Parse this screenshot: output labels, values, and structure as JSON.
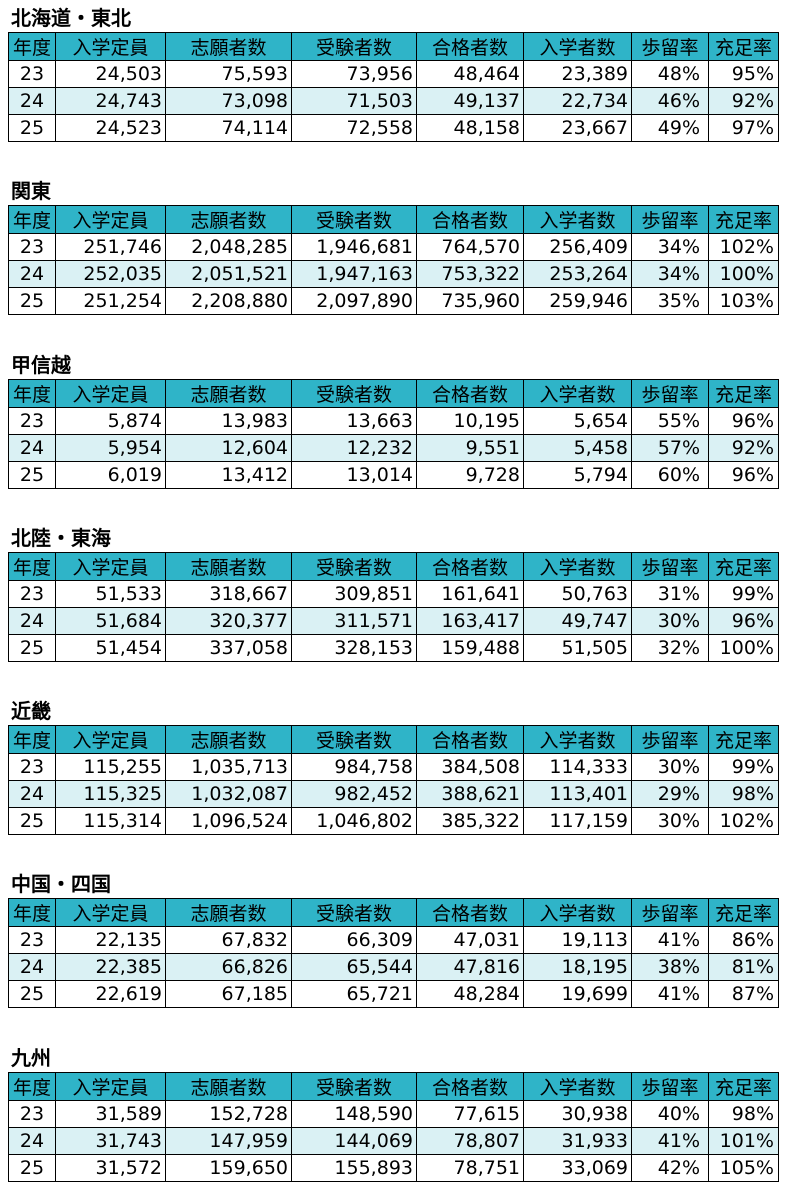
{
  "headers": {
    "year": "年度",
    "capacity": "入学定員",
    "applicants": "志願者数",
    "examinees": "受験者数",
    "passed": "合格者数",
    "enrolled": "入学者数",
    "yield_rate": "歩留率",
    "fill_rate": "充足率"
  },
  "colors": {
    "header_bg": "#2fb4c8",
    "band_bg": "#daf1f4",
    "border": "#000000"
  },
  "regions": [
    {
      "name": "北海道・東北",
      "rows": [
        {
          "year": "23",
          "capacity": "24,503",
          "applicants": "75,593",
          "examinees": "73,956",
          "passed": "48,464",
          "enrolled": "23,389",
          "yield_rate": "48%",
          "fill_rate": "95%"
        },
        {
          "year": "24",
          "capacity": "24,743",
          "applicants": "73,098",
          "examinees": "71,503",
          "passed": "49,137",
          "enrolled": "22,734",
          "yield_rate": "46%",
          "fill_rate": "92%"
        },
        {
          "year": "25",
          "capacity": "24,523",
          "applicants": "74,114",
          "examinees": "72,558",
          "passed": "48,158",
          "enrolled": "23,667",
          "yield_rate": "49%",
          "fill_rate": "97%"
        }
      ]
    },
    {
      "name": "関東",
      "rows": [
        {
          "year": "23",
          "capacity": "251,746",
          "applicants": "2,048,285",
          "examinees": "1,946,681",
          "passed": "764,570",
          "enrolled": "256,409",
          "yield_rate": "34%",
          "fill_rate": "102%"
        },
        {
          "year": "24",
          "capacity": "252,035",
          "applicants": "2,051,521",
          "examinees": "1,947,163",
          "passed": "753,322",
          "enrolled": "253,264",
          "yield_rate": "34%",
          "fill_rate": "100%"
        },
        {
          "year": "25",
          "capacity": "251,254",
          "applicants": "2,208,880",
          "examinees": "2,097,890",
          "passed": "735,960",
          "enrolled": "259,946",
          "yield_rate": "35%",
          "fill_rate": "103%"
        }
      ]
    },
    {
      "name": "甲信越",
      "rows": [
        {
          "year": "23",
          "capacity": "5,874",
          "applicants": "13,983",
          "examinees": "13,663",
          "passed": "10,195",
          "enrolled": "5,654",
          "yield_rate": "55%",
          "fill_rate": "96%"
        },
        {
          "year": "24",
          "capacity": "5,954",
          "applicants": "12,604",
          "examinees": "12,232",
          "passed": "9,551",
          "enrolled": "5,458",
          "yield_rate": "57%",
          "fill_rate": "92%"
        },
        {
          "year": "25",
          "capacity": "6,019",
          "applicants": "13,412",
          "examinees": "13,014",
          "passed": "9,728",
          "enrolled": "5,794",
          "yield_rate": "60%",
          "fill_rate": "96%"
        }
      ]
    },
    {
      "name": "北陸・東海",
      "rows": [
        {
          "year": "23",
          "capacity": "51,533",
          "applicants": "318,667",
          "examinees": "309,851",
          "passed": "161,641",
          "enrolled": "50,763",
          "yield_rate": "31%",
          "fill_rate": "99%"
        },
        {
          "year": "24",
          "capacity": "51,684",
          "applicants": "320,377",
          "examinees": "311,571",
          "passed": "163,417",
          "enrolled": "49,747",
          "yield_rate": "30%",
          "fill_rate": "96%"
        },
        {
          "year": "25",
          "capacity": "51,454",
          "applicants": "337,058",
          "examinees": "328,153",
          "passed": "159,488",
          "enrolled": "51,505",
          "yield_rate": "32%",
          "fill_rate": "100%"
        }
      ]
    },
    {
      "name": "近畿",
      "rows": [
        {
          "year": "23",
          "capacity": "115,255",
          "applicants": "1,035,713",
          "examinees": "984,758",
          "passed": "384,508",
          "enrolled": "114,333",
          "yield_rate": "30%",
          "fill_rate": "99%"
        },
        {
          "year": "24",
          "capacity": "115,325",
          "applicants": "1,032,087",
          "examinees": "982,452",
          "passed": "388,621",
          "enrolled": "113,401",
          "yield_rate": "29%",
          "fill_rate": "98%"
        },
        {
          "year": "25",
          "capacity": "115,314",
          "applicants": "1,096,524",
          "examinees": "1,046,802",
          "passed": "385,322",
          "enrolled": "117,159",
          "yield_rate": "30%",
          "fill_rate": "102%"
        }
      ]
    },
    {
      "name": "中国・四国",
      "rows": [
        {
          "year": "23",
          "capacity": "22,135",
          "applicants": "67,832",
          "examinees": "66,309",
          "passed": "47,031",
          "enrolled": "19,113",
          "yield_rate": "41%",
          "fill_rate": "86%"
        },
        {
          "year": "24",
          "capacity": "22,385",
          "applicants": "66,826",
          "examinees": "65,544",
          "passed": "47,816",
          "enrolled": "18,195",
          "yield_rate": "38%",
          "fill_rate": "81%"
        },
        {
          "year": "25",
          "capacity": "22,619",
          "applicants": "67,185",
          "examinees": "65,721",
          "passed": "48,284",
          "enrolled": "19,699",
          "yield_rate": "41%",
          "fill_rate": "87%"
        }
      ]
    },
    {
      "name": "九州",
      "rows": [
        {
          "year": "23",
          "capacity": "31,589",
          "applicants": "152,728",
          "examinees": "148,590",
          "passed": "77,615",
          "enrolled": "30,938",
          "yield_rate": "40%",
          "fill_rate": "98%"
        },
        {
          "year": "24",
          "capacity": "31,743",
          "applicants": "147,959",
          "examinees": "144,069",
          "passed": "78,807",
          "enrolled": "31,933",
          "yield_rate": "41%",
          "fill_rate": "101%"
        },
        {
          "year": "25",
          "capacity": "31,572",
          "applicants": "159,650",
          "examinees": "155,893",
          "passed": "78,751",
          "enrolled": "33,069",
          "yield_rate": "42%",
          "fill_rate": "105%"
        }
      ]
    }
  ]
}
